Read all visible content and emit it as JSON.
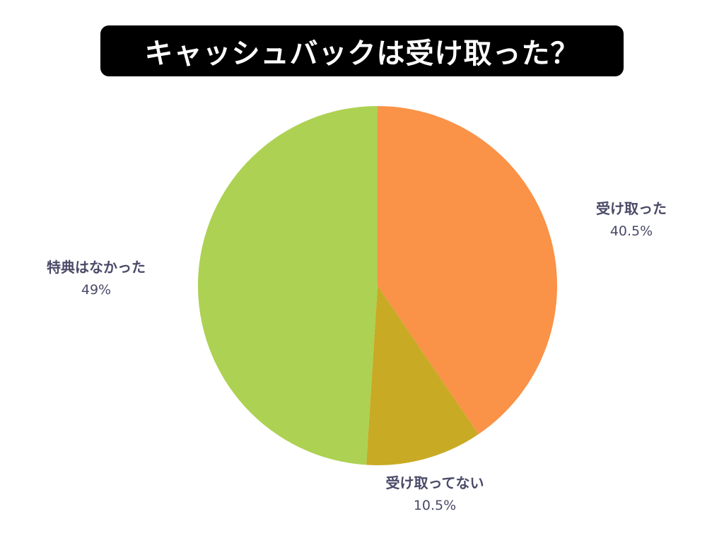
{
  "title": "キャッシュバックは受け取った？",
  "chart_data": {
    "type": "pie",
    "title": "キャッシュバックは受け取った？",
    "start_angle_deg": 0,
    "direction": "clockwise",
    "slices": [
      {
        "label": "受け取った",
        "value": 40.5,
        "value_label": "40.5%",
        "color": "#fa9248"
      },
      {
        "label": "受け取ってない",
        "value": 10.5,
        "value_label": "10.5%",
        "color": "#c9aa24"
      },
      {
        "label": "特典はなかった",
        "value": 49,
        "value_label": "49%",
        "color": "#add152"
      }
    ]
  }
}
